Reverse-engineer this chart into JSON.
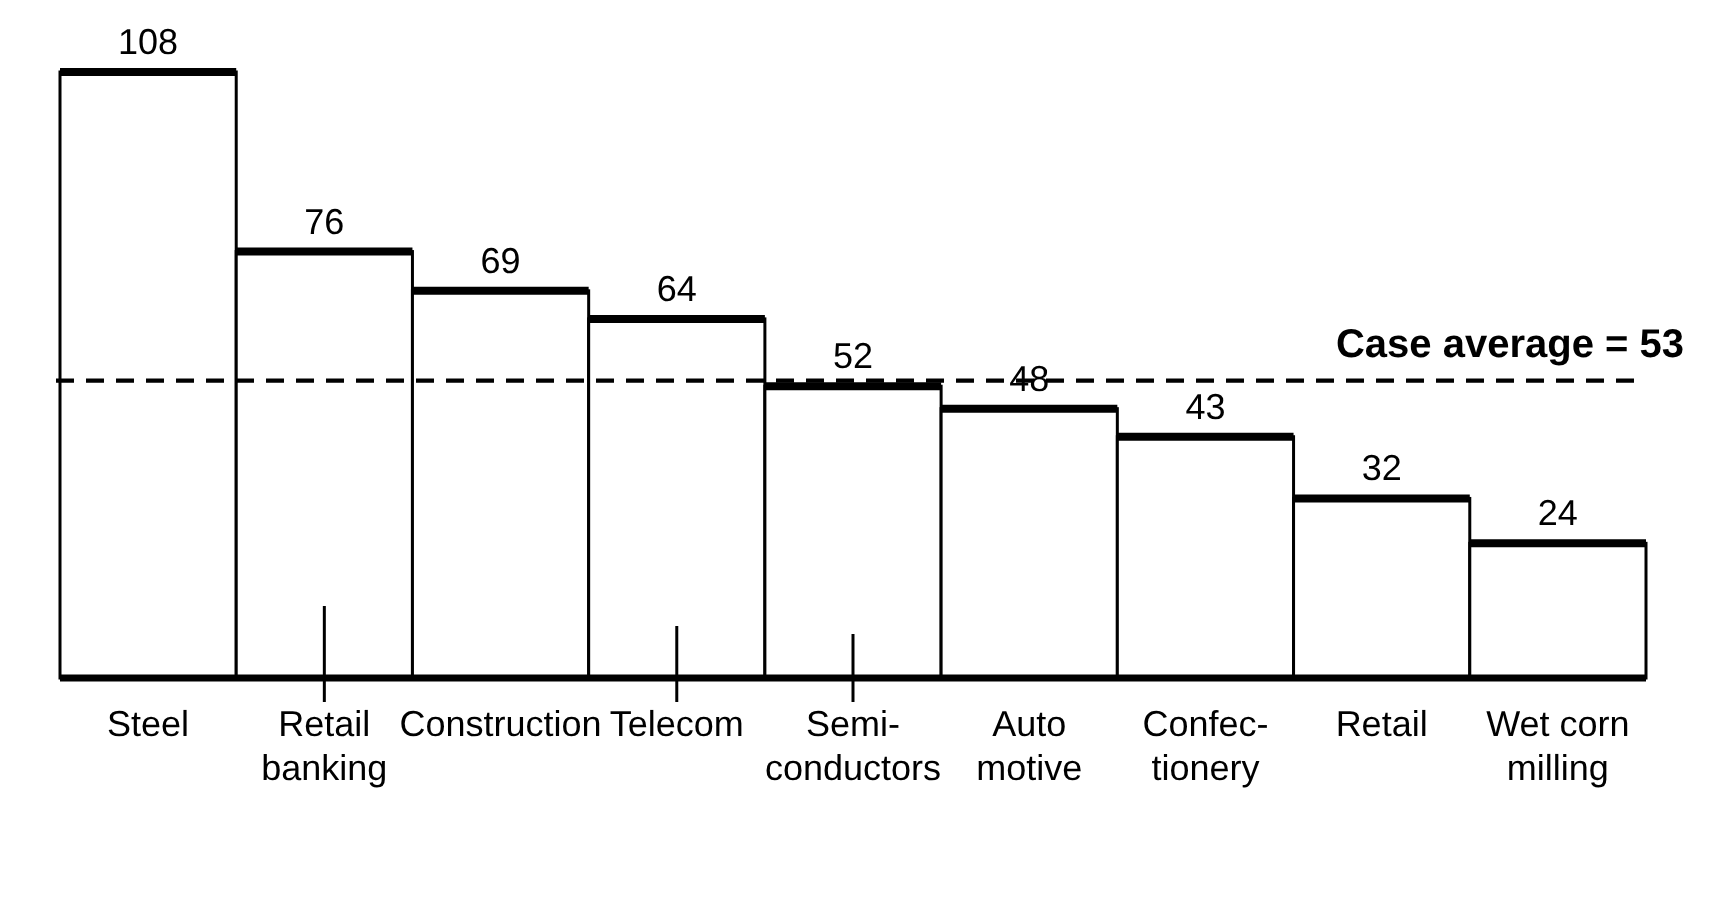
{
  "chart_data": {
    "type": "bar",
    "categories": [
      "Steel",
      "Retail\nbanking",
      "Construction",
      "Telecom",
      "Semi-\nconductors",
      "Auto\nmotive",
      "Confec-\ntionery",
      "Retail",
      "Wet corn\nmilling"
    ],
    "values": [
      108,
      76,
      69,
      64,
      52,
      48,
      43,
      32,
      24
    ],
    "color": "#ffffff",
    "data_labels": true,
    "tick_labels": "x",
    "ref_lines": [
      {
        "axis": "y",
        "value": 53,
        "label": "Case average = 53",
        "line_style": "dashed",
        "color": "#000000"
      }
    ]
  }
}
